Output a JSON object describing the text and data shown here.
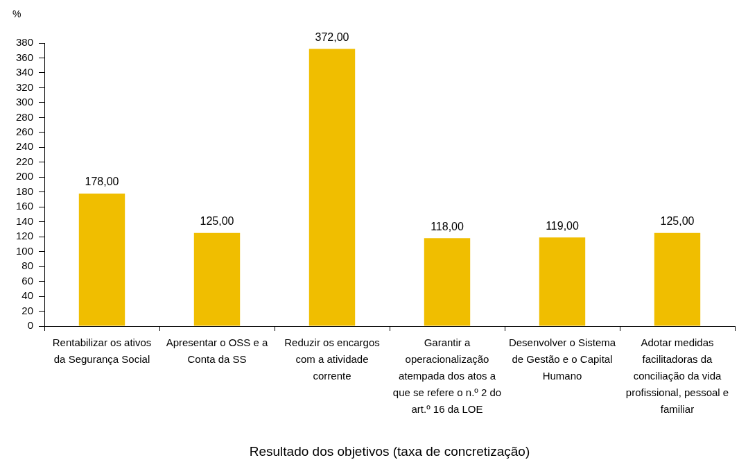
{
  "chart_data": {
    "type": "bar",
    "xlabel": "Resultado dos objetivos (taxa de concretização)",
    "ylabel": "%",
    "categories": [
      "Rentabilizar os ativos da Segurança Social",
      "Apresentar o OSS e a Conta da SS",
      "Reduzir os encargos com a atividade corrente",
      "Garantir a operacionalização atempada dos atos a que se refere o n.º 2 do art.º 16 da LOE",
      "Desenvolver o Sistema de Gestão e o Capital Humano",
      "Adotar medidas facilitadoras da conciliação da vida profissional, pessoal e familiar"
    ],
    "values": [
      178,
      125,
      372,
      118,
      119,
      125
    ],
    "color": "#f0be00",
    "value_labels": [
      "178,00",
      "125,00",
      "372,00",
      "118,00",
      "119,00",
      "125,00"
    ],
    "ylim": [
      0,
      380
    ],
    "yticks": [
      0,
      20,
      40,
      60,
      80,
      100,
      120,
      140,
      160,
      180,
      200,
      220,
      240,
      260,
      280,
      300,
      320,
      340,
      360,
      380
    ]
  }
}
